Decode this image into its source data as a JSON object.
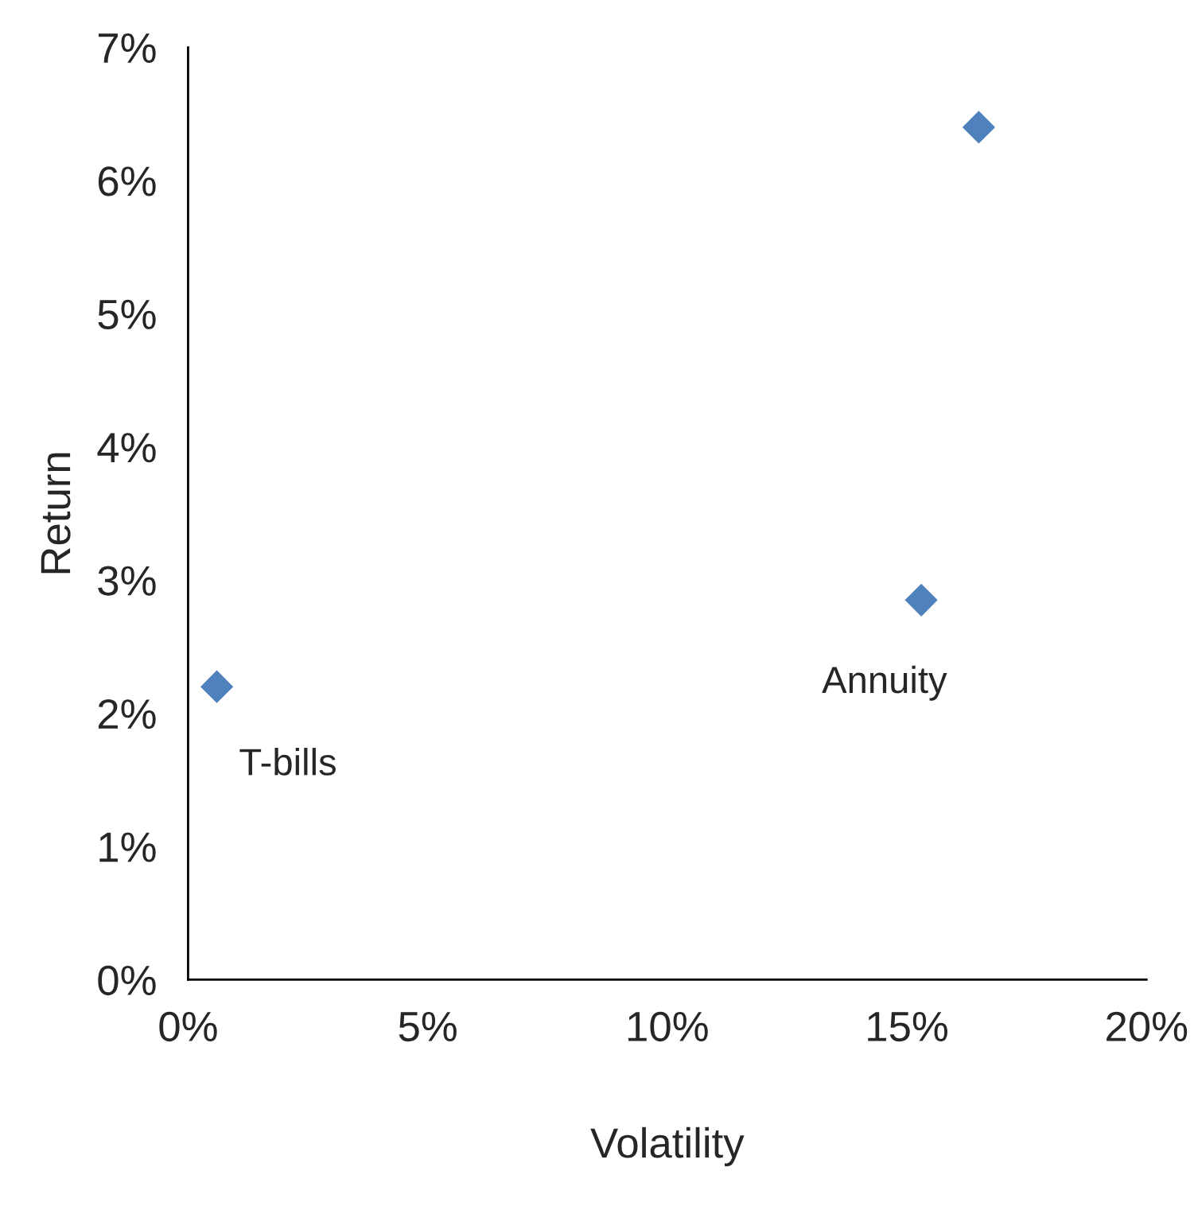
{
  "chart_data": {
    "type": "scatter",
    "xlabel": "Volatility",
    "ylabel": "Return",
    "x": [
      0.6,
      15.3,
      16.5
    ],
    "series": [
      {
        "color": "#4f81bd",
        "values": [
          2.2,
          2.85,
          6.4
        ]
      }
    ],
    "marker": "diamond",
    "grid": false,
    "xlim": [
      0,
      20
    ],
    "ylim": [
      0,
      7
    ],
    "xticks": [
      {
        "value": 0,
        "label": "0%"
      },
      {
        "value": 5,
        "label": "5%"
      },
      {
        "value": 10,
        "label": "10%"
      },
      {
        "value": 15,
        "label": "15%"
      },
      {
        "value": 20,
        "label": "20%"
      }
    ],
    "yticks": [
      {
        "value": 0,
        "label": "0%"
      },
      {
        "value": 1,
        "label": "1%"
      },
      {
        "value": 2,
        "label": "2%"
      },
      {
        "value": 3,
        "label": "3%"
      },
      {
        "value": 4,
        "label": "4%"
      },
      {
        "value": 5,
        "label": "5%"
      },
      {
        "value": 6,
        "label": "6%"
      },
      {
        "value": 7,
        "label": "7%"
      }
    ],
    "annotations": [
      {
        "text": "T-bills",
        "x": 0.6,
        "y": 2.2
      },
      {
        "text": "Annuity",
        "x": 15.3,
        "y": 2.85
      }
    ]
  }
}
